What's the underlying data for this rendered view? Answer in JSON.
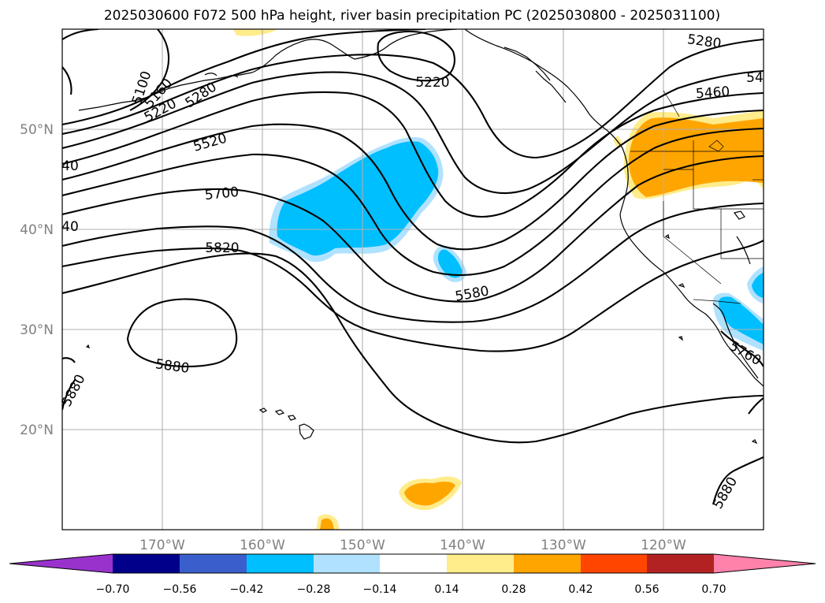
{
  "title": "2025030600 F072 500 hPa height, river basin precipitation PC (2025030800 - 2025031100)",
  "map": {
    "projection": "equirectangular",
    "lon_range": [
      -180,
      -110
    ],
    "lat_range": [
      10,
      60
    ],
    "gridlines": true,
    "lat_labels": [
      "50°N",
      "40°N",
      "30°N",
      "20°N"
    ],
    "lon_labels": [
      "170°W",
      "160°W",
      "150°W",
      "140°W",
      "130°W",
      "120°W"
    ]
  },
  "height_contours": {
    "variable": "500 hPa height",
    "units": "gpm",
    "interval": 60,
    "labels": [
      "5100",
      "5160",
      "5220",
      "5280",
      "5220",
      "5280",
      "54",
      "5460",
      "40",
      "5520",
      "5700",
      "40",
      "5820",
      "5580",
      "5880",
      "5880",
      "5760",
      "5880"
    ]
  },
  "precip_anomaly": {
    "variable": "river basin precipitation PC",
    "negative_regions": [
      "North-central Pacific band near 40-48°N, 145-158°W",
      "Small patch near 35°N, 140°W",
      "Southern California / Baja coast near 30-34°N"
    ],
    "positive_regions": [
      "Pacific Northwest and Northern Great Basin 44-50°N",
      "Small patch near 13°N, 144°W",
      "Small patch near 10°N, 153°W"
    ]
  },
  "colorbar": {
    "extend": "both",
    "ticks": [
      "−0.70",
      "−0.56",
      "−0.42",
      "−0.28",
      "−0.14",
      "0.14",
      "0.28",
      "0.42",
      "0.56",
      "0.70"
    ],
    "colors": {
      "under": "#9932CC",
      "bins": [
        "#00008B",
        "#3A5FCD",
        "#00BFFF",
        "#B0E2FF",
        "#FFFFFF",
        "#FFEC8B",
        "#FFA500",
        "#FF4500",
        "#B22222"
      ],
      "over": "#FF82AB"
    }
  }
}
